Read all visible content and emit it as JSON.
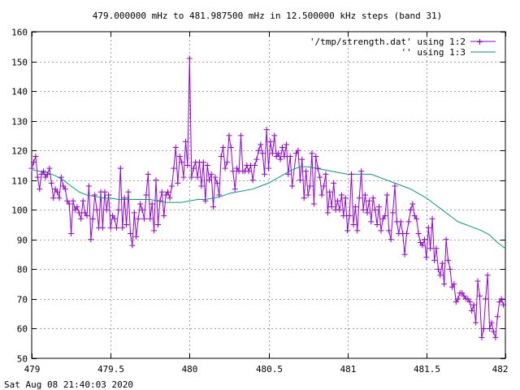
{
  "chart_data": {
    "type": "line",
    "title": "479.000000 mHz to 481.987500 mHz in 12.500000 kHz steps (band 31)",
    "xlabel": "",
    "ylabel": "",
    "xlim": [
      479,
      482
    ],
    "ylim": [
      50,
      160
    ],
    "x_ticks": [
      "479",
      "479.5",
      "480",
      "480.5",
      "481",
      "481.5",
      "482"
    ],
    "y_ticks": [
      "50",
      "60",
      "70",
      "80",
      "90",
      "100",
      "110",
      "120",
      "130",
      "140",
      "150",
      "160"
    ],
    "grid": true,
    "legend": "top-right",
    "timestamp": "Sat Aug 08 21:40:03 2020",
    "series": [
      {
        "name": "'/tmp/strength.dat' using 1:2",
        "color": "#9400d3",
        "marker": "plus",
        "points": [
          [
            479.0,
            114
          ],
          [
            479.0125,
            116
          ],
          [
            479.025,
            118
          ],
          [
            479.0375,
            111
          ],
          [
            479.05,
            107
          ],
          [
            479.0625,
            112
          ],
          [
            479.075,
            113
          ],
          [
            479.0875,
            111
          ],
          [
            479.1,
            112
          ],
          [
            479.1125,
            114
          ],
          [
            479.125,
            109
          ],
          [
            479.1375,
            104
          ],
          [
            479.15,
            107
          ],
          [
            479.1625,
            106
          ],
          [
            479.175,
            104
          ],
          [
            479.1875,
            111
          ],
          [
            479.2,
            108
          ],
          [
            479.2125,
            107
          ],
          [
            479.225,
            103
          ],
          [
            479.2375,
            102
          ],
          [
            479.25,
            92
          ],
          [
            479.2625,
            103
          ],
          [
            479.275,
            100
          ],
          [
            479.2875,
            101
          ],
          [
            479.3,
            99
          ],
          [
            479.3125,
            97
          ],
          [
            479.325,
            103
          ],
          [
            479.3375,
            99
          ],
          [
            479.35,
            98
          ],
          [
            479.3625,
            108
          ],
          [
            479.375,
            90
          ],
          [
            479.3875,
            97
          ],
          [
            479.4,
            105
          ],
          [
            479.4125,
            100
          ],
          [
            479.425,
            94
          ],
          [
            479.4375,
            106
          ],
          [
            479.45,
            94
          ],
          [
            479.4625,
            106
          ],
          [
            479.475,
            100
          ],
          [
            479.4875,
            105
          ],
          [
            479.5,
            94
          ],
          [
            479.5125,
            98
          ],
          [
            479.525,
            97
          ],
          [
            479.5375,
            94
          ],
          [
            479.55,
            100
          ],
          [
            479.5625,
            114
          ],
          [
            479.575,
            94
          ],
          [
            479.5875,
            104
          ],
          [
            479.6,
            95
          ],
          [
            479.6125,
            106
          ],
          [
            479.625,
            92
          ],
          [
            479.6375,
            88
          ],
          [
            479.65,
            99
          ],
          [
            479.6625,
            91
          ],
          [
            479.675,
            97
          ],
          [
            479.6875,
            102
          ],
          [
            479.7,
            100
          ],
          [
            479.7125,
            97
          ],
          [
            479.725,
            105
          ],
          [
            479.7375,
            112
          ],
          [
            479.75,
            97
          ],
          [
            479.7625,
            102
          ],
          [
            479.775,
            93
          ],
          [
            479.7875,
            110
          ],
          [
            479.8,
            95
          ],
          [
            479.8125,
            103
          ],
          [
            479.825,
            106
          ],
          [
            479.8375,
            98
          ],
          [
            479.85,
            105
          ],
          [
            479.8625,
            106
          ],
          [
            479.875,
            104
          ],
          [
            479.8875,
            108
          ],
          [
            479.9,
            114
          ],
          [
            479.9125,
            121
          ],
          [
            479.925,
            109
          ],
          [
            479.9375,
            118
          ],
          [
            479.95,
            116
          ],
          [
            479.9625,
            111
          ],
          [
            479.975,
            123
          ],
          [
            479.9875,
            115
          ],
          [
            480.0,
            151
          ],
          [
            480.0125,
            111
          ],
          [
            480.025,
            114
          ],
          [
            480.0375,
            116
          ],
          [
            480.05,
            111
          ],
          [
            480.0625,
            116
          ],
          [
            480.075,
            108
          ],
          [
            480.0875,
            116
          ],
          [
            480.1,
            103
          ],
          [
            480.1125,
            115
          ],
          [
            480.125,
            110
          ],
          [
            480.1375,
            112
          ],
          [
            480.15,
            101
          ],
          [
            480.1625,
            111
          ],
          [
            480.175,
            109
          ],
          [
            480.1875,
            105
          ],
          [
            480.2,
            118
          ],
          [
            480.2125,
            121
          ],
          [
            480.225,
            114
          ],
          [
            480.2375,
            116
          ],
          [
            480.25,
            125
          ],
          [
            480.2625,
            121
          ],
          [
            480.275,
            113
          ],
          [
            480.2875,
            107
          ],
          [
            480.3,
            114
          ],
          [
            480.3125,
            113
          ],
          [
            480.325,
            125
          ],
          [
            480.3375,
            113
          ],
          [
            480.35,
            113
          ],
          [
            480.3625,
            115
          ],
          [
            480.375,
            113
          ],
          [
            480.3875,
            115
          ],
          [
            480.4,
            110
          ],
          [
            480.4125,
            115
          ],
          [
            480.425,
            117
          ],
          [
            480.4375,
            120
          ],
          [
            480.45,
            122
          ],
          [
            480.4625,
            119
          ],
          [
            480.475,
            112
          ],
          [
            480.4875,
            127
          ],
          [
            480.5,
            114
          ],
          [
            480.5125,
            123
          ],
          [
            480.525,
            119
          ],
          [
            480.5375,
            125
          ],
          [
            480.55,
            118
          ],
          [
            480.5625,
            119
          ],
          [
            480.575,
            117
          ],
          [
            480.5875,
            121
          ],
          [
            480.6,
            118
          ],
          [
            480.6125,
            122
          ],
          [
            480.625,
            112
          ],
          [
            480.6375,
            118
          ],
          [
            480.65,
            108
          ],
          [
            480.675,
            119
          ],
          [
            480.6875,
            120
          ],
          [
            480.7,
            110
          ],
          [
            480.7125,
            117
          ],
          [
            480.725,
            104
          ],
          [
            480.7375,
            113
          ],
          [
            480.75,
            105
          ],
          [
            480.7625,
            108
          ],
          [
            480.775,
            119
          ],
          [
            480.7875,
            102
          ],
          [
            480.8,
            118
          ],
          [
            480.8125,
            114
          ],
          [
            480.825,
            111
          ],
          [
            480.8375,
            105
          ],
          [
            480.85,
            108
          ],
          [
            480.8625,
            112
          ],
          [
            480.875,
            99
          ],
          [
            480.8875,
            106
          ],
          [
            480.9,
            101
          ],
          [
            480.9125,
            109
          ],
          [
            480.925,
            100
          ],
          [
            480.9375,
            103
          ],
          [
            480.95,
            100
          ],
          [
            480.9625,
            105
          ],
          [
            480.975,
            98
          ],
          [
            480.9875,
            104
          ],
          [
            481.0,
            93
          ],
          [
            481.0125,
            98
          ],
          [
            481.025,
            112
          ],
          [
            481.0375,
            95
          ],
          [
            481.05,
            101
          ],
          [
            481.0625,
            93
          ],
          [
            481.075,
            104
          ],
          [
            481.0875,
            113
          ],
          [
            481.1,
            100
          ],
          [
            481.1125,
            105
          ],
          [
            481.125,
            99
          ],
          [
            481.1375,
            103
          ],
          [
            481.15,
            96
          ],
          [
            481.1625,
            104
          ],
          [
            481.175,
            100
          ],
          [
            481.1875,
            95
          ],
          [
            481.2,
            101
          ],
          [
            481.2125,
            93
          ],
          [
            481.225,
            97
          ],
          [
            481.2375,
            98
          ],
          [
            481.25,
            105
          ],
          [
            481.2625,
            93
          ],
          [
            481.275,
            90
          ],
          [
            481.2875,
            99
          ],
          [
            481.3,
            108
          ],
          [
            481.3125,
            96
          ],
          [
            481.325,
            92
          ],
          [
            481.3375,
            96
          ],
          [
            481.35,
            92
          ],
          [
            481.3625,
            85
          ],
          [
            481.375,
            92
          ],
          [
            481.3875,
            96
          ],
          [
            481.4,
            100
          ],
          [
            481.4125,
            102
          ],
          [
            481.425,
            98
          ],
          [
            481.4375,
            97
          ],
          [
            481.45,
            92
          ],
          [
            481.4625,
            89
          ],
          [
            481.475,
            88
          ],
          [
            481.4875,
            90
          ],
          [
            481.5,
            84
          ],
          [
            481.5125,
            94
          ],
          [
            481.525,
            87
          ],
          [
            481.5375,
            97
          ],
          [
            481.55,
            83
          ],
          [
            481.5625,
            87
          ],
          [
            481.575,
            80
          ],
          [
            481.5875,
            78
          ],
          [
            481.6,
            82
          ],
          [
            481.6125,
            75
          ],
          [
            481.625,
            90
          ],
          [
            481.6375,
            83
          ],
          [
            481.65,
            80
          ],
          [
            481.6625,
            74
          ],
          [
            481.675,
            75
          ],
          [
            481.6875,
            69
          ],
          [
            481.7,
            70
          ],
          [
            481.7125,
            72
          ],
          [
            481.725,
            72
          ],
          [
            481.7375,
            71
          ],
          [
            481.75,
            70
          ],
          [
            481.7625,
            70
          ],
          [
            481.775,
            69
          ],
          [
            481.7875,
            66
          ],
          [
            481.8,
            68
          ],
          [
            481.8125,
            62
          ],
          [
            481.825,
            76
          ],
          [
            481.8375,
            71
          ],
          [
            481.85,
            57
          ],
          [
            481.8625,
            60
          ],
          [
            481.875,
            70
          ],
          [
            481.8875,
            78
          ],
          [
            481.9,
            60
          ],
          [
            481.9125,
            62
          ],
          [
            481.925,
            59
          ],
          [
            481.9375,
            57
          ],
          [
            481.95,
            64
          ],
          [
            481.9625,
            69
          ],
          [
            481.975,
            70
          ],
          [
            481.9875,
            68
          ]
        ]
      },
      {
        "name": "'' using 1:3",
        "color": "#009e73",
        "marker": "none",
        "points": [
          [
            479.0,
            113.5
          ],
          [
            479.05,
            113
          ],
          [
            479.1,
            112.5
          ],
          [
            479.15,
            111.5
          ],
          [
            479.2,
            110
          ],
          [
            479.25,
            108
          ],
          [
            479.3,
            106
          ],
          [
            479.35,
            105
          ],
          [
            479.4,
            104.5
          ],
          [
            479.45,
            104
          ],
          [
            479.5,
            104
          ],
          [
            479.55,
            103.5
          ],
          [
            479.6,
            103.5
          ],
          [
            479.65,
            103.5
          ],
          [
            479.7,
            103.5
          ],
          [
            479.75,
            103.5
          ],
          [
            479.8,
            103
          ],
          [
            479.85,
            102.5
          ],
          [
            479.9,
            102.5
          ],
          [
            479.95,
            102.5
          ],
          [
            480.0,
            103
          ],
          [
            480.05,
            103.5
          ],
          [
            480.1,
            103.5
          ],
          [
            480.15,
            104
          ],
          [
            480.2,
            104.5
          ],
          [
            480.25,
            105.5
          ],
          [
            480.3,
            106
          ],
          [
            480.35,
            106.5
          ],
          [
            480.4,
            107
          ],
          [
            480.45,
            108
          ],
          [
            480.5,
            109
          ],
          [
            480.55,
            110.5
          ],
          [
            480.6,
            112
          ],
          [
            480.65,
            113.5
          ],
          [
            480.7,
            114.5
          ],
          [
            480.75,
            114.5
          ],
          [
            480.8,
            114
          ],
          [
            480.85,
            113.5
          ],
          [
            480.9,
            113
          ],
          [
            480.95,
            112.5
          ],
          [
            481.0,
            112
          ],
          [
            481.05,
            112
          ],
          [
            481.1,
            112
          ],
          [
            481.15,
            112
          ],
          [
            481.2,
            111
          ],
          [
            481.25,
            110
          ],
          [
            481.3,
            109
          ],
          [
            481.35,
            108
          ],
          [
            481.4,
            107
          ],
          [
            481.45,
            105.5
          ],
          [
            481.5,
            104
          ],
          [
            481.55,
            102
          ],
          [
            481.6,
            100
          ],
          [
            481.65,
            98
          ],
          [
            481.7,
            96
          ],
          [
            481.75,
            95
          ],
          [
            481.8,
            94
          ],
          [
            481.85,
            93
          ],
          [
            481.9,
            91.5
          ],
          [
            481.95,
            89
          ],
          [
            482.0,
            87
          ]
        ]
      }
    ]
  }
}
